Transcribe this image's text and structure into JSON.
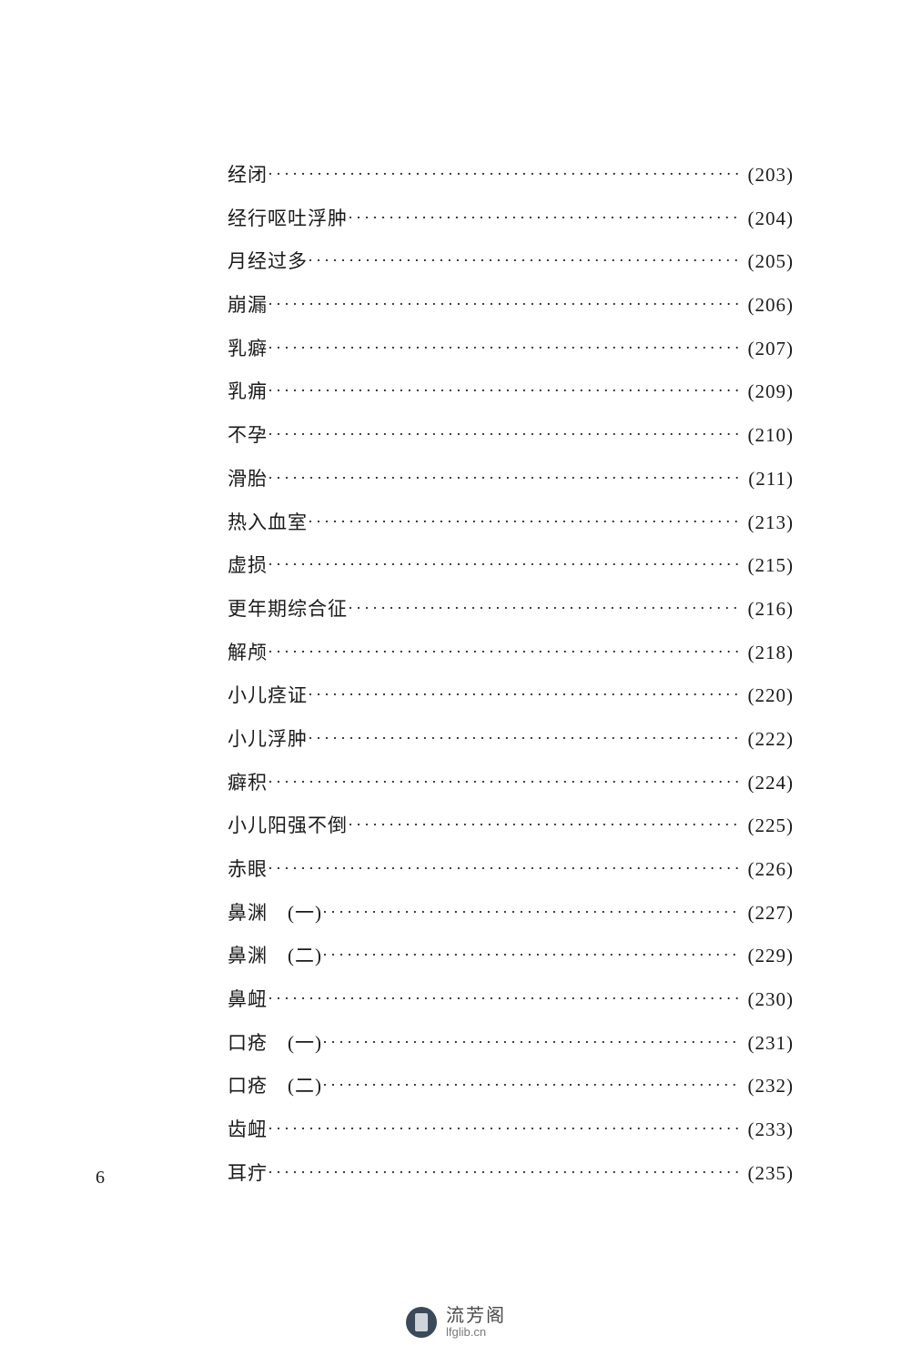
{
  "toc": {
    "entries": [
      {
        "label": "经闭",
        "page": "(203)"
      },
      {
        "label": "经行呕吐浮肿",
        "page": "(204)"
      },
      {
        "label": "月经过多",
        "page": "(205)"
      },
      {
        "label": "崩漏",
        "page": "(206)"
      },
      {
        "label": "乳癖",
        "page": "(207)"
      },
      {
        "label": "乳痈",
        "page": "(209)"
      },
      {
        "label": "不孕",
        "page": "(210)"
      },
      {
        "label": "滑胎",
        "page": "(211)"
      },
      {
        "label": "热入血室",
        "page": "(213)"
      },
      {
        "label": "虚损",
        "page": "(215)"
      },
      {
        "label": "更年期综合征",
        "page": "(216)"
      },
      {
        "label": "解颅",
        "page": "(218)"
      },
      {
        "label": "小儿痉证",
        "page": "(220)"
      },
      {
        "label": "小儿浮肿",
        "page": "(222)"
      },
      {
        "label": "癖积",
        "page": "(224)"
      },
      {
        "label": "小儿阳强不倒",
        "page": "(225)"
      },
      {
        "label": "赤眼",
        "page": "(226)"
      },
      {
        "label": "鼻渊　(一)",
        "page": "(227)"
      },
      {
        "label": "鼻渊　(二)",
        "page": "(229)"
      },
      {
        "label": "鼻衄",
        "page": "(230)"
      },
      {
        "label": "口疮　(一)",
        "page": "(231)"
      },
      {
        "label": "口疮　(二)",
        "page": "(232)"
      },
      {
        "label": "齿衄",
        "page": "(233)"
      },
      {
        "label": "耳疔",
        "page": "(235)"
      }
    ]
  },
  "pageNumber": "6",
  "footer": {
    "cn": "流芳阁",
    "url": "lfglib.cn"
  },
  "style": {
    "background": "#ffffff",
    "text_color": "#1a1a1a",
    "font_size_body": 21,
    "font_family": "SimSun",
    "dot_char": "·"
  }
}
